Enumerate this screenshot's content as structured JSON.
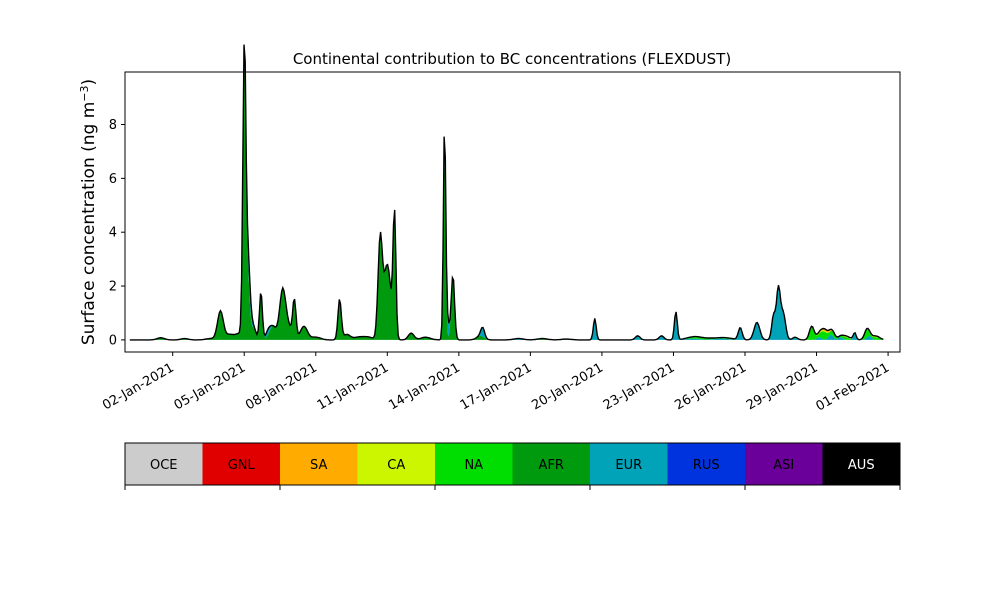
{
  "chart_data": {
    "type": "area",
    "title": "Continental contribution to BC concentrations (FLEXDUST)",
    "ylabel": "Surface concentration (ng m",
    "ylabel_sup": "−3",
    "ylabel_close": ")",
    "xlabel": "",
    "ylim": [
      -0.45,
      9.95
    ],
    "xlim": [
      -1.0,
      31.5
    ],
    "yticks": [
      0,
      2,
      4,
      6,
      8
    ],
    "xticks": [
      {
        "day": 1,
        "label": "02-Jan-2021"
      },
      {
        "day": 4,
        "label": "05-Jan-2021"
      },
      {
        "day": 7,
        "label": "08-Jan-2021"
      },
      {
        "day": 10,
        "label": "11-Jan-2021"
      },
      {
        "day": 13,
        "label": "14-Jan-2021"
      },
      {
        "day": 16,
        "label": "17-Jan-2021"
      },
      {
        "day": 19,
        "label": "20-Jan-2021"
      },
      {
        "day": 22,
        "label": "23-Jan-2021"
      },
      {
        "day": 25,
        "label": "26-Jan-2021"
      },
      {
        "day": 28,
        "label": "29-Jan-2021"
      },
      {
        "day": 31,
        "label": "01-Feb-2021"
      }
    ],
    "series_colors": {
      "AFR": "#009a0f",
      "EUR": "#00a3b8",
      "NA": "#00dd00",
      "CA": "#ccf500",
      "SA": "#ffab00",
      "GNL": "#e00000",
      "RUS": "#0033dd",
      "ASI": "#6a0099",
      "AUS": "#000000"
    },
    "series": [
      {
        "name": "AFR",
        "peaks": [
          [
            0.5,
            0.08,
            0.15
          ],
          [
            1.5,
            0.05,
            0.15
          ],
          [
            2.6,
            0.05,
            0.2
          ],
          [
            3.0,
            1.05,
            0.12
          ],
          [
            3.4,
            0.2,
            0.2
          ],
          [
            3.8,
            0.2,
            0.15
          ],
          [
            4.0,
            8.6,
            0.06
          ],
          [
            4.1,
            3.2,
            0.1
          ],
          [
            4.4,
            0.4,
            0.1
          ],
          [
            4.7,
            1.8,
            0.06
          ],
          [
            5.2,
            0.5,
            0.15
          ],
          [
            5.6,
            1.65,
            0.12
          ],
          [
            5.8,
            0.6,
            0.15
          ],
          [
            6.1,
            1.45,
            0.07
          ],
          [
            6.5,
            0.5,
            0.15
          ],
          [
            7.0,
            0.1,
            0.2
          ],
          [
            8.0,
            1.5,
            0.07
          ],
          [
            8.3,
            0.2,
            0.15
          ],
          [
            8.8,
            0.1,
            0.2
          ],
          [
            9.2,
            0.1,
            0.2
          ],
          [
            9.7,
            3.6,
            0.09
          ],
          [
            10.0,
            2.8,
            0.15
          ],
          [
            10.3,
            4.55,
            0.06
          ],
          [
            11.0,
            0.25,
            0.12
          ],
          [
            11.6,
            0.1,
            0.2
          ],
          [
            12.4,
            7.4,
            0.05
          ],
          [
            12.75,
            2.4,
            0.07
          ],
          [
            13.9,
            0.15,
            0.15
          ],
          [
            16.5,
            0.05,
            0.2
          ],
          [
            17.5,
            0.03,
            0.2
          ]
        ]
      },
      {
        "name": "EUR",
        "peaks": [
          [
            4.2,
            0.8,
            0.1
          ],
          [
            5.0,
            0.2,
            0.1
          ],
          [
            12.5,
            0.8,
            0.08
          ],
          [
            14.0,
            0.35,
            0.08
          ],
          [
            15.5,
            0.05,
            0.2
          ],
          [
            18.7,
            0.8,
            0.06
          ],
          [
            20.5,
            0.15,
            0.1
          ],
          [
            21.5,
            0.15,
            0.1
          ],
          [
            22.1,
            1.05,
            0.06
          ],
          [
            22.8,
            0.05,
            0.3
          ],
          [
            24.0,
            0.05,
            0.3
          ],
          [
            24.8,
            0.45,
            0.08
          ],
          [
            25.5,
            0.65,
            0.12
          ],
          [
            26.2,
            0.9,
            0.08
          ],
          [
            26.4,
            1.85,
            0.08
          ],
          [
            26.6,
            1.0,
            0.1
          ],
          [
            27.1,
            0.1,
            0.1
          ],
          [
            28.1,
            0.1,
            0.1
          ],
          [
            28.6,
            0.2,
            0.1
          ],
          [
            29.0,
            0.1,
            0.1
          ],
          [
            29.6,
            0.25,
            0.06
          ],
          [
            30.2,
            0.15,
            0.1
          ]
        ]
      },
      {
        "name": "NA",
        "peaks": [
          [
            27.8,
            0.5,
            0.1
          ],
          [
            28.3,
            0.3,
            0.15
          ],
          [
            28.7,
            0.15,
            0.1
          ],
          [
            29.2,
            0.1,
            0.15
          ],
          [
            30.1,
            0.3,
            0.1
          ],
          [
            30.5,
            0.1,
            0.15
          ],
          [
            22.9,
            0.05,
            0.3
          ],
          [
            23.5,
            0.04,
            0.3
          ],
          [
            24.3,
            0.04,
            0.3
          ]
        ]
      },
      {
        "name": "CA",
        "peaks": [
          [
            28.2,
            0.05,
            0.2
          ],
          [
            29.3,
            0.05,
            0.2
          ],
          [
            30.4,
            0.05,
            0.2
          ]
        ]
      },
      {
        "name": "SA",
        "peaks": [
          [
            28.4,
            0.05,
            0.2
          ],
          [
            23.0,
            0.02,
            0.3
          ]
        ]
      },
      {
        "name": "GNL",
        "peaks": [
          [
            28.5,
            0.03,
            0.2
          ]
        ]
      },
      {
        "name": "RUS",
        "peaks": [
          [
            4.0,
            0.4,
            0.05
          ],
          [
            12.4,
            0.3,
            0.05
          ]
        ]
      },
      {
        "name": "ASI",
        "peaks": [
          [
            4.0,
            0.2,
            0.05
          ]
        ]
      },
      {
        "name": "AUS",
        "peaks": []
      }
    ],
    "x_start": -0.8,
    "x_end": 30.8,
    "colorbar": [
      {
        "label": "OCE",
        "color": "#cccccc",
        "text_color": "#000000"
      },
      {
        "label": "GNL",
        "color": "#e00000",
        "text_color": "#000000"
      },
      {
        "label": "SA",
        "color": "#ffab00",
        "text_color": "#000000"
      },
      {
        "label": "CA",
        "color": "#ccf500",
        "text_color": "#000000"
      },
      {
        "label": "NA",
        "color": "#00dd00",
        "text_color": "#000000"
      },
      {
        "label": "AFR",
        "color": "#009a0f",
        "text_color": "#000000"
      },
      {
        "label": "EUR",
        "color": "#00a3b8",
        "text_color": "#000000"
      },
      {
        "label": "RUS",
        "color": "#0033dd",
        "text_color": "#000000"
      },
      {
        "label": "ASI",
        "color": "#6a0099",
        "text_color": "#000000"
      },
      {
        "label": "AUS",
        "color": "#000000",
        "text_color": "#ffffff"
      }
    ]
  }
}
